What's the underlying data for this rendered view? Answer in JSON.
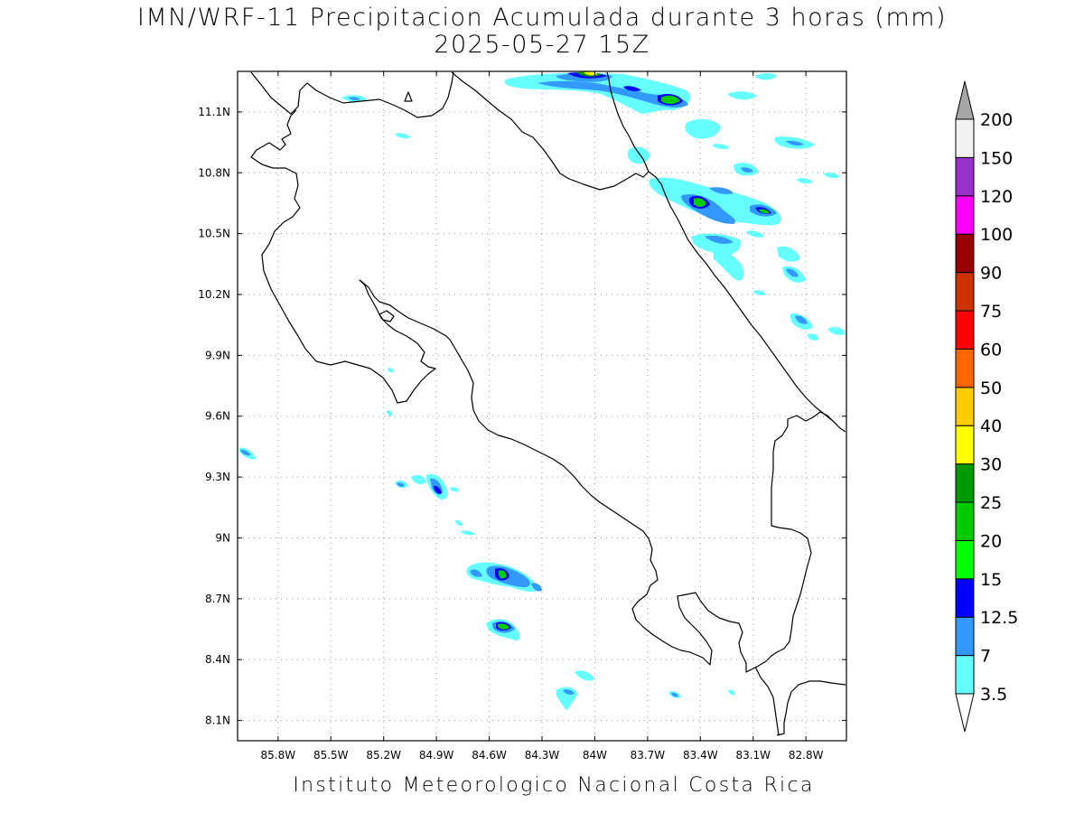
{
  "header": {
    "title_line1": "IMN/WRF-11 Precipitacion Acumulada durante 3 horas (mm)",
    "title_line2": "2025-05-27 15Z"
  },
  "footer": {
    "credit": "Instituto Meteorologico Nacional Costa Rica"
  },
  "map": {
    "lon_range": [
      -86.03,
      -82.57
    ],
    "lat_range": [
      8.0,
      11.3
    ],
    "lat_ticks": [
      "11.1N",
      "10.8N",
      "10.5N",
      "10.2N",
      "9.9N",
      "9.6N",
      "9.3N",
      "9N",
      "8.7N",
      "8.4N",
      "8.1N"
    ],
    "lon_ticks": [
      "85.8W",
      "85.5W",
      "85.2W",
      "84.9W",
      "84.6W",
      "84.3W",
      "84W",
      "83.7W",
      "83.4W",
      "83.1W",
      "82.8W"
    ],
    "grid": true,
    "gridline_style": "dotted"
  },
  "colorbar": {
    "labels": [
      "3.5",
      "7",
      "12.5",
      "15",
      "20",
      "25",
      "30",
      "40",
      "50",
      "60",
      "75",
      "90",
      "100",
      "120",
      "150",
      "200"
    ],
    "colors": [
      "#66ffff",
      "#3399ff",
      "#0000ff",
      "#00ff00",
      "#00cc00",
      "#009900",
      "#ffff00",
      "#ffcc00",
      "#ff6600",
      "#ff0000",
      "#cc3300",
      "#990000",
      "#ff00ff",
      "#9933cc",
      "#f2f2f2"
    ],
    "extend_top_color": "#a6a6a6",
    "extend_bottom_color": "#ffffff"
  }
}
